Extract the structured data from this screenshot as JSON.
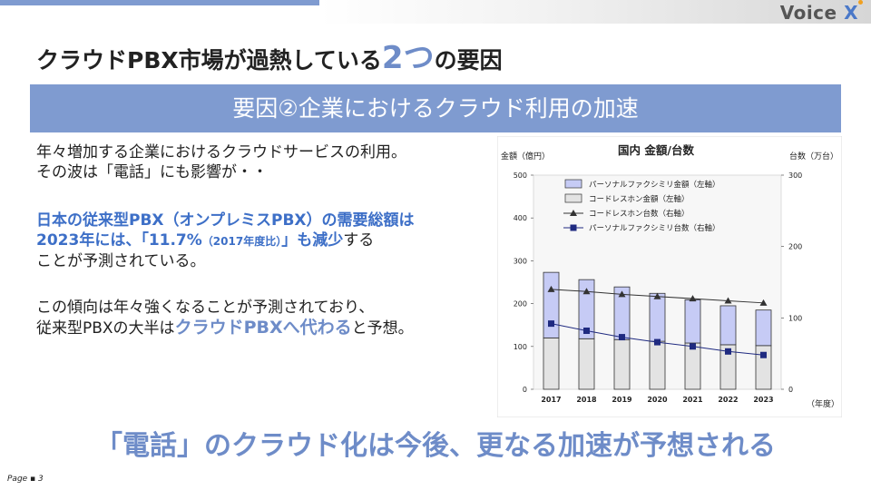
{
  "header": {
    "logo_text": "Voice ",
    "logo_x": "X"
  },
  "title": {
    "prefix": "クラウドPBX市場が過熱している",
    "number": "2つ",
    "suffix": "の要因"
  },
  "banner": "要因②企業におけるクラウド利用の加速",
  "body": {
    "p1_line1": "年々増加する企業におけるクラウドサービスの利用。",
    "p1_line2": "その波は「電話」にも影響が・・",
    "p2_line1": "日本の従来型PBX（オンプレミスPBX）の需要総額は",
    "p2_line2_hl": "2023年には、「11.7%",
    "p2_line2_small": "（2017年度比）",
    "p2_line2_hl_end": "」も減少",
    "p2_line2_rest": "する",
    "p2_line3": "ことが予測されている。",
    "p3_line1": "この傾向は年々強くなることが予測されており、",
    "p3_line2_pre": "従来型PBXの大半は",
    "p3_line2_hl": "クラウドPBXへ代わる",
    "p3_line2_post": "と予想。"
  },
  "bottom_text": "「電話」のクラウド化は今後、更なる加速が予想される",
  "footer": "Page ▪ 3",
  "colors": {
    "accent": "#7f9bd0",
    "highlight": "#3d6fc7",
    "personal_fax_bar": "#c6cbf5",
    "cordless_bar": "#e3e3e3",
    "fax_units_line": "#1f2a80"
  },
  "chart_data": {
    "type": "bar",
    "title": "国内 金額/台数",
    "ylabel_left": "金額（億円）",
    "ylabel_right": "台数（万台）",
    "xlabel": "（年度）",
    "categories": [
      "2017",
      "2018",
      "2019",
      "2020",
      "2021",
      "2022",
      "2023"
    ],
    "ylim_left": [
      0,
      500
    ],
    "ylim_right": [
      0,
      300
    ],
    "yticks_left": [
      "0",
      "100",
      "200",
      "300",
      "400",
      "500"
    ],
    "yticks_right": [
      "0",
      "100",
      "200",
      "300"
    ],
    "stacked": true,
    "series": [
      {
        "name": "パーソナルファクシミリ金額（左軸）",
        "kind": "bar",
        "axis": "left",
        "values": [
          153,
          138,
          123,
          112,
          101,
          91,
          83
        ]
      },
      {
        "name": "コードレスホン金額（左軸）",
        "kind": "bar",
        "axis": "left",
        "values": [
          120,
          118,
          116,
          112,
          108,
          104,
          102
        ]
      },
      {
        "name": "コードレスホン台数（右軸）",
        "kind": "line",
        "marker": "triangle",
        "axis": "right",
        "values": [
          140,
          137,
          133,
          130,
          127,
          124,
          121
        ]
      },
      {
        "name": "パーソナルファクシミリ台数（右軸）",
        "kind": "line",
        "marker": "square",
        "axis": "right",
        "values": [
          92,
          82,
          73,
          66,
          60,
          53,
          48
        ]
      }
    ]
  }
}
